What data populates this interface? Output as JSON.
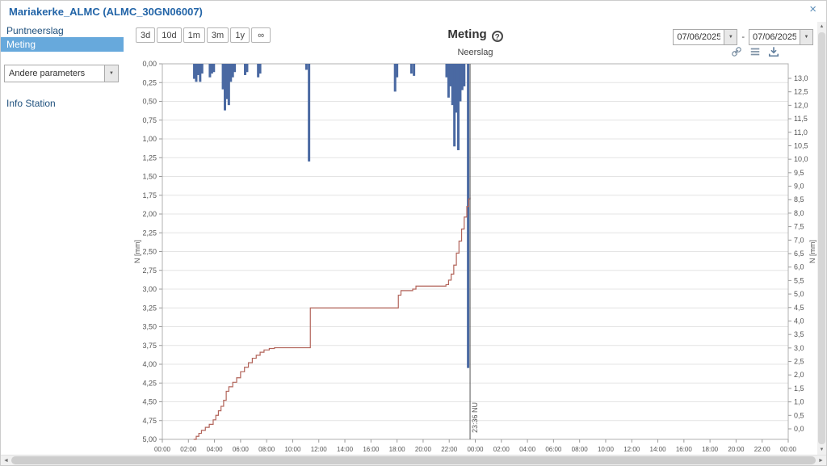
{
  "window": {
    "title": "Mariakerke_ALMC (ALMC_30GN06007)"
  },
  "icons": {
    "close": "×",
    "dropdown": "▼",
    "help": "?",
    "scroll_up": "▲",
    "scroll_down": "▼",
    "scroll_left": "◄",
    "scroll_right": "►"
  },
  "sidebar": {
    "items": [
      {
        "label": "Puntneerslag",
        "selected": false
      },
      {
        "label": "Meting",
        "selected": true
      }
    ],
    "parameter_dropdown": {
      "value": "Andere parameters"
    },
    "info_link": {
      "label": "Info Station"
    }
  },
  "toolbar": {
    "range_buttons": [
      "3d",
      "10d",
      "1m",
      "3m",
      "1y",
      "∞"
    ],
    "title": "Meting",
    "date_from": "07/06/2025",
    "date_separator": "-",
    "date_to": "07/06/2025"
  },
  "chart_data": {
    "type": "combo",
    "title": "Neerslag",
    "grid": "horizontal",
    "legend": "none",
    "x_axis": {
      "start_hour": 0,
      "end_hour": 48,
      "tick_labels": [
        "00:00",
        "02:00",
        "04:00",
        "06:00",
        "08:00",
        "10:00",
        "12:00",
        "14:00",
        "16:00",
        "18:00",
        "20:00",
        "22:00",
        "00:00",
        "02:00",
        "04:00",
        "06:00",
        "08:00",
        "10:00",
        "12:00",
        "14:00",
        "16:00",
        "18:00",
        "20:00",
        "22:00",
        "00:00"
      ]
    },
    "left_axis": {
      "label": "N [mm]",
      "min": 0,
      "max": 5,
      "inverted": true,
      "tick_labels": [
        "0,00",
        "0,25",
        "0,50",
        "0,75",
        "1,00",
        "1,25",
        "1,50",
        "1,75",
        "2,00",
        "2,25",
        "2,50",
        "2,75",
        "3,00",
        "3,25",
        "3,50",
        "3,75",
        "4,00",
        "4,25",
        "4,50",
        "4,75",
        "5,00"
      ]
    },
    "right_axis": {
      "label": "N [mm]",
      "min": 0,
      "max": 13,
      "tick_labels": [
        "13,0",
        "12,5",
        "12,0",
        "11,5",
        "11,0",
        "10,5",
        "10,0",
        "9,5",
        "9,0",
        "8,5",
        "8,0",
        "7,5",
        "7,0",
        "6,5",
        "6,0",
        "5,5",
        "5,0",
        "4,5",
        "4,0",
        "3,5",
        "3,0",
        "2,5",
        "2,0",
        "1,5",
        "1,0",
        "0,5",
        "0,0"
      ]
    },
    "now_marker": {
      "hour": 23.6,
      "label": "23:36 NU"
    },
    "series": {
      "bars": {
        "name": "neerslag-interval",
        "unit": "mm",
        "color": "#4a69a2",
        "points": [
          [
            2.45,
            0.2
          ],
          [
            2.6,
            0.24
          ],
          [
            2.75,
            0.15
          ],
          [
            2.9,
            0.24
          ],
          [
            3.05,
            0.13
          ],
          [
            3.65,
            0.18
          ],
          [
            3.8,
            0.13
          ],
          [
            3.95,
            0.11
          ],
          [
            4.65,
            0.34
          ],
          [
            4.8,
            0.62
          ],
          [
            4.95,
            0.47
          ],
          [
            5.1,
            0.55
          ],
          [
            5.25,
            0.24
          ],
          [
            5.4,
            0.18
          ],
          [
            5.55,
            0.11
          ],
          [
            6.35,
            0.15
          ],
          [
            6.5,
            0.11
          ],
          [
            7.35,
            0.18
          ],
          [
            7.5,
            0.13
          ],
          [
            11.05,
            0.08
          ],
          [
            11.25,
            1.3
          ],
          [
            17.85,
            0.37
          ],
          [
            18.0,
            0.18
          ],
          [
            19.1,
            0.13
          ],
          [
            19.3,
            0.16
          ],
          [
            21.8,
            0.18
          ],
          [
            21.95,
            0.45
          ],
          [
            22.1,
            0.3
          ],
          [
            22.25,
            0.55
          ],
          [
            22.4,
            1.1
          ],
          [
            22.55,
            0.65
          ],
          [
            22.7,
            1.15
          ],
          [
            22.85,
            0.5
          ],
          [
            23.0,
            0.35
          ],
          [
            23.15,
            0.3
          ],
          [
            23.45,
            4.05
          ]
        ]
      },
      "cumulative_line": {
        "name": "neerslag-cumulatief",
        "unit": "mm",
        "color": "#b2645a",
        "axis_values": "left",
        "points": [
          [
            2.4,
            5.0
          ],
          [
            2.6,
            4.96
          ],
          [
            2.8,
            4.92
          ],
          [
            3.0,
            4.88
          ],
          [
            3.3,
            4.84
          ],
          [
            3.6,
            4.8
          ],
          [
            3.9,
            4.74
          ],
          [
            4.1,
            4.68
          ],
          [
            4.3,
            4.62
          ],
          [
            4.5,
            4.56
          ],
          [
            4.7,
            4.48
          ],
          [
            4.9,
            4.36
          ],
          [
            5.1,
            4.3
          ],
          [
            5.4,
            4.24
          ],
          [
            5.7,
            4.18
          ],
          [
            6.0,
            4.1
          ],
          [
            6.3,
            4.04
          ],
          [
            6.6,
            3.98
          ],
          [
            6.9,
            3.92
          ],
          [
            7.2,
            3.88
          ],
          [
            7.5,
            3.84
          ],
          [
            7.8,
            3.81
          ],
          [
            8.2,
            3.79
          ],
          [
            8.6,
            3.78
          ],
          [
            11.25,
            3.78
          ],
          [
            11.35,
            3.25
          ],
          [
            17.95,
            3.25
          ],
          [
            18.1,
            3.08
          ],
          [
            18.3,
            3.02
          ],
          [
            19.2,
            3.0
          ],
          [
            19.45,
            2.96
          ],
          [
            21.75,
            2.94
          ],
          [
            21.95,
            2.88
          ],
          [
            22.15,
            2.8
          ],
          [
            22.35,
            2.68
          ],
          [
            22.55,
            2.52
          ],
          [
            22.75,
            2.36
          ],
          [
            22.95,
            2.2
          ],
          [
            23.15,
            2.04
          ],
          [
            23.35,
            1.9
          ],
          [
            23.5,
            1.8
          ],
          [
            23.6,
            1.78
          ]
        ]
      }
    }
  }
}
